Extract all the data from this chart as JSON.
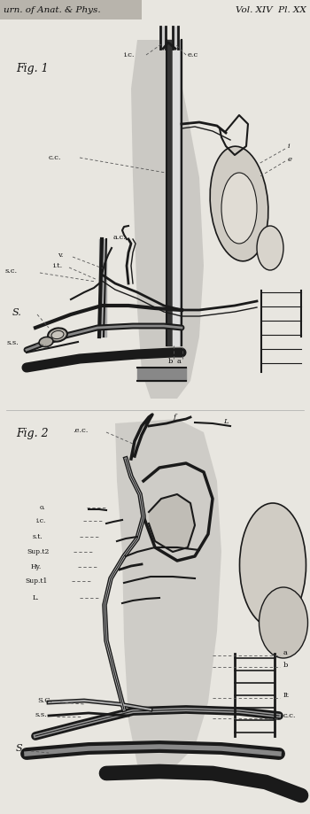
{
  "paper_color": "#e8e6e0",
  "header_bg": "#b8b4ac",
  "title_left": "urn. of Anat. & Phys.",
  "title_right": "Vol. XIV  Pl. XX",
  "fig1_label": "Fig. 1",
  "fig2_label": "Fig. 2",
  "lc": "#1a1a1a",
  "tc": "#111111",
  "shade1": "#a0a0a0",
  "shade2": "#c8c4bc",
  "shade3": "#888888",
  "fig1": {
    "ic_text": "i.c.",
    "ec_text": "e.c",
    "cc_text": "c.c.",
    "i_text": "i",
    "e_text": "e",
    "sc_text": "s.c.",
    "v_text": "v.",
    "it_text": "i.t.",
    "S_text": "S.",
    "ac_text": "a.c.",
    "ss_text": "s.s.",
    "b_text": "b",
    "a_text": "a"
  },
  "fig2": {
    "ec_text": ".e.c.",
    "f_text": "f",
    "L_text": "L",
    "o_text": "o.",
    "ic_text": "i.c.",
    "st_text": "s.t.",
    "supt2_text": "Sup.t2",
    "Hy_text": "Hy.",
    "supt1_text": "Sup.t1",
    "L2_text": "L.",
    "a_text": "a",
    "b_text": "b",
    "sc_text": "S.C.",
    "ss_text": "s.s.",
    "It_text": "It",
    "S_text": "S.",
    "cc_text": "c.c."
  }
}
